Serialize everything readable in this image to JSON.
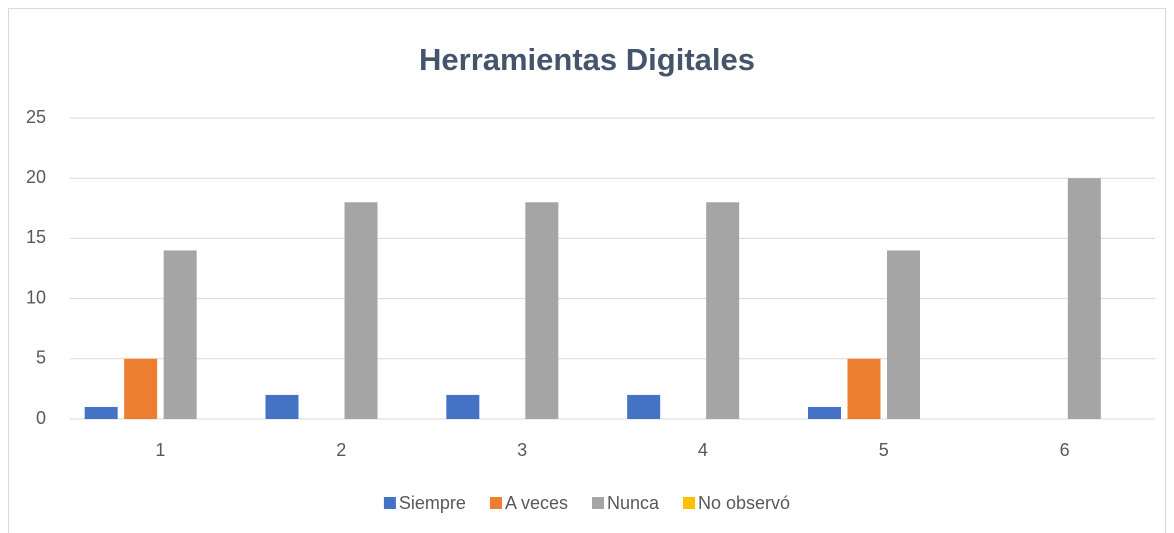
{
  "chart_data": {
    "type": "bar",
    "title": "Herramientas Digitales",
    "categories": [
      "1",
      "2",
      "3",
      "4",
      "5",
      "6"
    ],
    "series": [
      {
        "name": "Siempre",
        "color": "#4472c4",
        "values": [
          1,
          2,
          2,
          2,
          1,
          0
        ]
      },
      {
        "name": "A veces",
        "color": "#ed7d31",
        "values": [
          5,
          0,
          0,
          0,
          5,
          0
        ]
      },
      {
        "name": "Nunca",
        "color": "#a5a5a5",
        "values": [
          14,
          18,
          18,
          18,
          14,
          20
        ]
      },
      {
        "name": "No observó",
        "color": "#ffc000",
        "values": [
          0,
          0,
          0,
          0,
          0,
          0
        ]
      }
    ],
    "ylim": [
      0,
      25
    ],
    "yticks": [
      0,
      5,
      10,
      15,
      20,
      25
    ],
    "grid": true,
    "legend": "bottom"
  }
}
